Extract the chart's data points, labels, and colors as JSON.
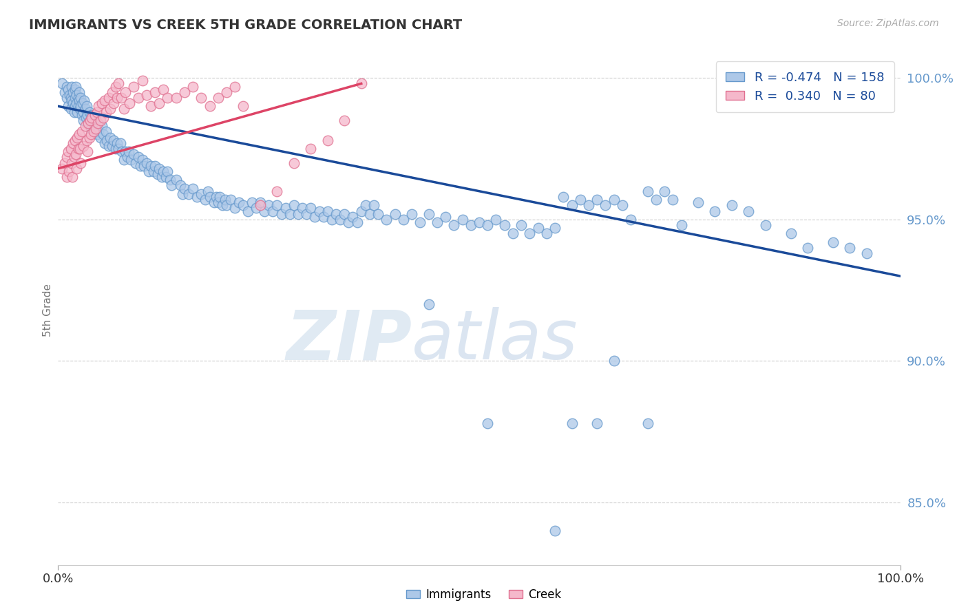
{
  "title": "IMMIGRANTS VS CREEK 5TH GRADE CORRELATION CHART",
  "source": "Source: ZipAtlas.com",
  "ylabel": "5th Grade",
  "xlim": [
    0.0,
    1.0
  ],
  "ylim": [
    0.828,
    1.008
  ],
  "yticks": [
    0.85,
    0.9,
    0.95,
    1.0
  ],
  "ytick_labels": [
    "85.0%",
    "90.0%",
    "95.0%",
    "100.0%"
  ],
  "xticks": [
    0.0,
    1.0
  ],
  "xtick_labels": [
    "0.0%",
    "100.0%"
  ],
  "immigrants_color": "#adc8e8",
  "creek_color": "#f5b8cb",
  "immigrants_edge": "#6699cc",
  "creek_edge": "#e07090",
  "immigrants_line_color": "#1a4a99",
  "creek_line_color": "#dd4466",
  "R_immigrants": -0.474,
  "N_immigrants": 158,
  "R_creek": 0.34,
  "N_creek": 80,
  "grid_color": "#cccccc",
  "legend_label_immigrants": "Immigrants",
  "legend_label_creek": "Creek",
  "background_color": "#ffffff",
  "imm_line_x0": 0.0,
  "imm_line_y0": 0.99,
  "imm_line_x1": 1.0,
  "imm_line_y1": 0.93,
  "creek_line_x0": 0.0,
  "creek_line_y0": 0.968,
  "creek_line_x1": 0.36,
  "creek_line_y1": 0.998,
  "immigrants_data": [
    [
      0.005,
      0.998
    ],
    [
      0.008,
      0.995
    ],
    [
      0.01,
      0.997
    ],
    [
      0.01,
      0.993
    ],
    [
      0.012,
      0.996
    ],
    [
      0.012,
      0.99
    ],
    [
      0.014,
      0.994
    ],
    [
      0.015,
      0.993
    ],
    [
      0.015,
      0.989
    ],
    [
      0.016,
      0.997
    ],
    [
      0.016,
      0.992
    ],
    [
      0.018,
      0.995
    ],
    [
      0.018,
      0.991
    ],
    [
      0.019,
      0.988
    ],
    [
      0.02,
      0.996
    ],
    [
      0.02,
      0.993
    ],
    [
      0.02,
      0.99
    ],
    [
      0.021,
      0.997
    ],
    [
      0.022,
      0.994
    ],
    [
      0.022,
      0.991
    ],
    [
      0.023,
      0.988
    ],
    [
      0.024,
      0.993
    ],
    [
      0.024,
      0.99
    ],
    [
      0.025,
      0.995
    ],
    [
      0.025,
      0.992
    ],
    [
      0.026,
      0.989
    ],
    [
      0.027,
      0.993
    ],
    [
      0.027,
      0.99
    ],
    [
      0.028,
      0.987
    ],
    [
      0.029,
      0.991
    ],
    [
      0.03,
      0.988
    ],
    [
      0.03,
      0.985
    ],
    [
      0.031,
      0.992
    ],
    [
      0.032,
      0.989
    ],
    [
      0.033,
      0.986
    ],
    [
      0.034,
      0.99
    ],
    [
      0.035,
      0.987
    ],
    [
      0.036,
      0.984
    ],
    [
      0.037,
      0.988
    ],
    [
      0.038,
      0.985
    ],
    [
      0.039,
      0.982
    ],
    [
      0.04,
      0.987
    ],
    [
      0.04,
      0.984
    ],
    [
      0.042,
      0.985
    ],
    [
      0.043,
      0.982
    ],
    [
      0.044,
      0.986
    ],
    [
      0.045,
      0.983
    ],
    [
      0.046,
      0.98
    ],
    [
      0.047,
      0.984
    ],
    [
      0.048,
      0.981
    ],
    [
      0.05,
      0.979
    ],
    [
      0.052,
      0.983
    ],
    [
      0.054,
      0.98
    ],
    [
      0.055,
      0.977
    ],
    [
      0.057,
      0.981
    ],
    [
      0.058,
      0.978
    ],
    [
      0.06,
      0.976
    ],
    [
      0.062,
      0.979
    ],
    [
      0.064,
      0.976
    ],
    [
      0.066,
      0.978
    ],
    [
      0.068,
      0.975
    ],
    [
      0.07,
      0.977
    ],
    [
      0.072,
      0.975
    ],
    [
      0.074,
      0.977
    ],
    [
      0.076,
      0.974
    ],
    [
      0.078,
      0.971
    ],
    [
      0.08,
      0.974
    ],
    [
      0.082,
      0.972
    ],
    [
      0.084,
      0.974
    ],
    [
      0.086,
      0.971
    ],
    [
      0.09,
      0.973
    ],
    [
      0.092,
      0.97
    ],
    [
      0.095,
      0.972
    ],
    [
      0.098,
      0.969
    ],
    [
      0.1,
      0.971
    ],
    [
      0.102,
      0.969
    ],
    [
      0.105,
      0.97
    ],
    [
      0.108,
      0.967
    ],
    [
      0.11,
      0.969
    ],
    [
      0.113,
      0.967
    ],
    [
      0.115,
      0.969
    ],
    [
      0.118,
      0.966
    ],
    [
      0.12,
      0.968
    ],
    [
      0.123,
      0.965
    ],
    [
      0.125,
      0.967
    ],
    [
      0.128,
      0.965
    ],
    [
      0.13,
      0.967
    ],
    [
      0.133,
      0.964
    ],
    [
      0.135,
      0.962
    ],
    [
      0.14,
      0.964
    ],
    [
      0.145,
      0.962
    ],
    [
      0.148,
      0.959
    ],
    [
      0.15,
      0.961
    ],
    [
      0.155,
      0.959
    ],
    [
      0.16,
      0.961
    ],
    [
      0.165,
      0.958
    ],
    [
      0.17,
      0.959
    ],
    [
      0.175,
      0.957
    ],
    [
      0.178,
      0.96
    ],
    [
      0.18,
      0.958
    ],
    [
      0.185,
      0.956
    ],
    [
      0.188,
      0.958
    ],
    [
      0.19,
      0.956
    ],
    [
      0.192,
      0.958
    ],
    [
      0.195,
      0.955
    ],
    [
      0.198,
      0.957
    ],
    [
      0.2,
      0.955
    ],
    [
      0.205,
      0.957
    ],
    [
      0.21,
      0.954
    ],
    [
      0.215,
      0.956
    ],
    [
      0.22,
      0.955
    ],
    [
      0.225,
      0.953
    ],
    [
      0.23,
      0.956
    ],
    [
      0.235,
      0.954
    ],
    [
      0.24,
      0.956
    ],
    [
      0.245,
      0.953
    ],
    [
      0.25,
      0.955
    ],
    [
      0.255,
      0.953
    ],
    [
      0.26,
      0.955
    ],
    [
      0.265,
      0.952
    ],
    [
      0.27,
      0.954
    ],
    [
      0.275,
      0.952
    ],
    [
      0.28,
      0.955
    ],
    [
      0.285,
      0.952
    ],
    [
      0.29,
      0.954
    ],
    [
      0.295,
      0.952
    ],
    [
      0.3,
      0.954
    ],
    [
      0.305,
      0.951
    ],
    [
      0.31,
      0.953
    ],
    [
      0.315,
      0.951
    ],
    [
      0.32,
      0.953
    ],
    [
      0.325,
      0.95
    ],
    [
      0.33,
      0.952
    ],
    [
      0.335,
      0.95
    ],
    [
      0.34,
      0.952
    ],
    [
      0.345,
      0.949
    ],
    [
      0.35,
      0.951
    ],
    [
      0.355,
      0.949
    ],
    [
      0.36,
      0.953
    ],
    [
      0.365,
      0.955
    ],
    [
      0.37,
      0.952
    ],
    [
      0.375,
      0.955
    ],
    [
      0.38,
      0.952
    ],
    [
      0.39,
      0.95
    ],
    [
      0.4,
      0.952
    ],
    [
      0.41,
      0.95
    ],
    [
      0.42,
      0.952
    ],
    [
      0.43,
      0.949
    ],
    [
      0.44,
      0.952
    ],
    [
      0.45,
      0.949
    ],
    [
      0.46,
      0.951
    ],
    [
      0.47,
      0.948
    ],
    [
      0.48,
      0.95
    ],
    [
      0.49,
      0.948
    ],
    [
      0.5,
      0.949
    ],
    [
      0.51,
      0.948
    ],
    [
      0.52,
      0.95
    ],
    [
      0.53,
      0.948
    ],
    [
      0.54,
      0.945
    ],
    [
      0.55,
      0.948
    ],
    [
      0.56,
      0.945
    ],
    [
      0.57,
      0.947
    ],
    [
      0.58,
      0.945
    ],
    [
      0.59,
      0.947
    ],
    [
      0.6,
      0.958
    ],
    [
      0.61,
      0.955
    ],
    [
      0.62,
      0.957
    ],
    [
      0.63,
      0.955
    ],
    [
      0.64,
      0.957
    ],
    [
      0.65,
      0.955
    ],
    [
      0.66,
      0.957
    ],
    [
      0.67,
      0.955
    ],
    [
      0.68,
      0.95
    ],
    [
      0.7,
      0.96
    ],
    [
      0.71,
      0.957
    ],
    [
      0.72,
      0.96
    ],
    [
      0.73,
      0.957
    ],
    [
      0.74,
      0.948
    ],
    [
      0.44,
      0.92
    ],
    [
      0.51,
      0.878
    ],
    [
      0.59,
      0.84
    ],
    [
      0.61,
      0.878
    ],
    [
      0.64,
      0.878
    ],
    [
      0.66,
      0.9
    ],
    [
      0.7,
      0.878
    ],
    [
      0.76,
      0.956
    ],
    [
      0.78,
      0.953
    ],
    [
      0.8,
      0.955
    ],
    [
      0.82,
      0.953
    ],
    [
      0.84,
      0.948
    ],
    [
      0.87,
      0.945
    ],
    [
      0.89,
      0.94
    ],
    [
      0.92,
      0.942
    ],
    [
      0.94,
      0.94
    ],
    [
      0.96,
      0.938
    ],
    [
      0.97,
      0.998
    ]
  ],
  "creek_data": [
    [
      0.005,
      0.968
    ],
    [
      0.008,
      0.97
    ],
    [
      0.01,
      0.972
    ],
    [
      0.01,
      0.965
    ],
    [
      0.012,
      0.974
    ],
    [
      0.013,
      0.967
    ],
    [
      0.015,
      0.975
    ],
    [
      0.016,
      0.97
    ],
    [
      0.017,
      0.965
    ],
    [
      0.018,
      0.977
    ],
    [
      0.019,
      0.972
    ],
    [
      0.02,
      0.978
    ],
    [
      0.021,
      0.973
    ],
    [
      0.022,
      0.968
    ],
    [
      0.023,
      0.979
    ],
    [
      0.024,
      0.975
    ],
    [
      0.025,
      0.98
    ],
    [
      0.026,
      0.975
    ],
    [
      0.027,
      0.97
    ],
    [
      0.028,
      0.981
    ],
    [
      0.03,
      0.976
    ],
    [
      0.032,
      0.983
    ],
    [
      0.034,
      0.978
    ],
    [
      0.035,
      0.974
    ],
    [
      0.036,
      0.984
    ],
    [
      0.037,
      0.979
    ],
    [
      0.038,
      0.985
    ],
    [
      0.039,
      0.98
    ],
    [
      0.04,
      0.986
    ],
    [
      0.042,
      0.981
    ],
    [
      0.044,
      0.987
    ],
    [
      0.045,
      0.982
    ],
    [
      0.046,
      0.988
    ],
    [
      0.047,
      0.984
    ],
    [
      0.048,
      0.99
    ],
    [
      0.05,
      0.985
    ],
    [
      0.052,
      0.991
    ],
    [
      0.054,
      0.986
    ],
    [
      0.055,
      0.992
    ],
    [
      0.057,
      0.988
    ],
    [
      0.06,
      0.993
    ],
    [
      0.062,
      0.989
    ],
    [
      0.064,
      0.995
    ],
    [
      0.066,
      0.991
    ],
    [
      0.068,
      0.997
    ],
    [
      0.07,
      0.993
    ],
    [
      0.072,
      0.998
    ],
    [
      0.075,
      0.993
    ],
    [
      0.078,
      0.989
    ],
    [
      0.08,
      0.995
    ],
    [
      0.085,
      0.991
    ],
    [
      0.09,
      0.997
    ],
    [
      0.095,
      0.993
    ],
    [
      0.1,
      0.999
    ],
    [
      0.105,
      0.994
    ],
    [
      0.11,
      0.99
    ],
    [
      0.115,
      0.995
    ],
    [
      0.12,
      0.991
    ],
    [
      0.125,
      0.996
    ],
    [
      0.13,
      0.993
    ],
    [
      0.14,
      0.993
    ],
    [
      0.15,
      0.995
    ],
    [
      0.16,
      0.997
    ],
    [
      0.17,
      0.993
    ],
    [
      0.18,
      0.99
    ],
    [
      0.19,
      0.993
    ],
    [
      0.2,
      0.995
    ],
    [
      0.21,
      0.997
    ],
    [
      0.22,
      0.99
    ],
    [
      0.24,
      0.955
    ],
    [
      0.26,
      0.96
    ],
    [
      0.28,
      0.97
    ],
    [
      0.3,
      0.975
    ],
    [
      0.32,
      0.978
    ],
    [
      0.34,
      0.985
    ],
    [
      0.36,
      0.998
    ]
  ]
}
